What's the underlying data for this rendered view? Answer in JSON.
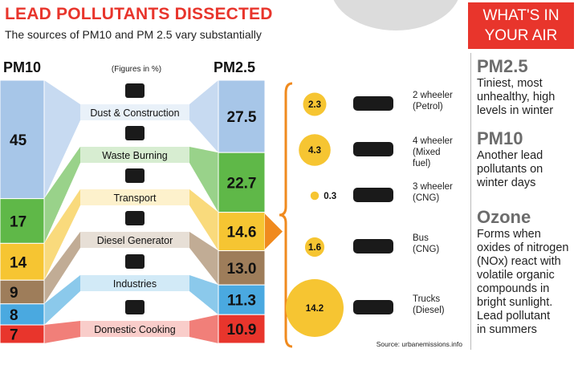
{
  "header": {
    "title": "LEAD POLLUTANTS DISSECTED",
    "subtitle": "The sources of PM10 and PM 2.5 vary substantially"
  },
  "badge": {
    "line1": "WHAT'S IN",
    "line2": "YOUR AIR"
  },
  "sidebar": [
    {
      "heading": "PM2.5",
      "text": [
        "Tiniest, most",
        "unhealthy, high",
        "levels in winter"
      ]
    },
    {
      "heading": "PM10",
      "text": [
        "Another lead",
        "pollutants on",
        "winter days"
      ]
    },
    {
      "heading": "Ozone",
      "text": [
        "Forms when",
        "oxides of nitrogen",
        "(NOx) react with",
        "volatile organic",
        "compounds in",
        "bright sunlight.",
        "Lead pollutant",
        "in summers"
      ]
    }
  ],
  "source": "Source: urbanemissions.info",
  "colors": {
    "accent": "#e8352c",
    "dust": "#a7c6e8",
    "waste": "#5fb848",
    "transport": "#f6c532",
    "diesel": "#9e7d5a",
    "industries": "#4aa9e0",
    "cooking": "#e8352c",
    "bubble": "#f6c532",
    "bracket": "#f08a1e"
  },
  "chart_data": [
    {
      "type": "bar",
      "subtype": "stacked-comparison",
      "figures_note": "(Figures in %)",
      "series": [
        {
          "name": "PM10",
          "values": [
            45,
            17,
            14,
            9,
            8,
            7
          ]
        },
        {
          "name": "PM2.5",
          "values": [
            27.5,
            22.7,
            14.6,
            13.0,
            11.3,
            10.9
          ]
        }
      ],
      "categories": [
        "Dust & Construction",
        "Waste Burning",
        "Transport",
        "Diesel Generator",
        "Industries",
        "Domestic Cooking"
      ],
      "pm10_labels": [
        "45",
        "17",
        "14",
        "9",
        "8",
        "7"
      ],
      "pm25_labels": [
        "27.5",
        "22.7",
        "14.6",
        "13.0",
        "11.3",
        "10.9"
      ],
      "icons": [
        "excavator-icon",
        "fire-icon",
        "bus-front-icon",
        "generator-icon",
        "factory-icon",
        "cooking-pot-icon"
      ]
    },
    {
      "type": "scatter",
      "subtype": "bubble",
      "breakdown_of": "Transport",
      "categories": [
        "2 wheeler (Petrol)",
        "4 wheeler (Mixed fuel)",
        "3 wheeler (CNG)",
        "Bus (CNG)",
        "Trucks (Diesel)"
      ],
      "items": [
        {
          "line1": "2 wheeler",
          "line2": "(Petrol)",
          "value": 2.3,
          "label": "2.3",
          "icon": "motorcycle-icon"
        },
        {
          "line1": "4 wheeler",
          "line2": "(Mixed",
          "line3": "fuel)",
          "value": 4.3,
          "label": "4.3",
          "icon": "car-icon"
        },
        {
          "line1": "3 wheeler",
          "line2": "(CNG)",
          "value": 0.3,
          "label": "0.3",
          "icon": "auto-rickshaw-icon"
        },
        {
          "line1": "Bus",
          "line2": "(CNG)",
          "value": 1.6,
          "label": "1.6",
          "icon": "bus-icon"
        },
        {
          "line1": "Trucks",
          "line2": "(Diesel)",
          "value": 14.2,
          "label": "14.2",
          "icon": "truck-icon"
        }
      ]
    }
  ]
}
